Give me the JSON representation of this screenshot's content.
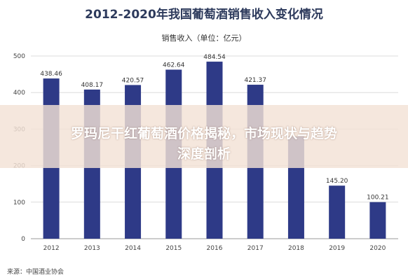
{
  "chart_data": {
    "type": "bar",
    "title": "2012-2020年我国葡萄酒销售收入变化情况",
    "subtitle": "销售收入（单位：亿元）",
    "source": "来源：中国酒业协会",
    "categories": [
      "2012",
      "2013",
      "2014",
      "2015",
      "2016",
      "2017",
      "2018",
      "2019",
      "2020"
    ],
    "values": [
      438.46,
      408.17,
      420.57,
      462.64,
      484.54,
      421.37,
      280,
      145.2,
      100.21
    ],
    "value_labels": [
      "438.46",
      "408.17",
      "420.57",
      "462.64",
      "484.54",
      "421.37",
      "",
      "145.20",
      "100.21"
    ],
    "ylim": [
      0,
      500
    ],
    "yticks": [
      0,
      100,
      200,
      300,
      400,
      500
    ],
    "grid": true,
    "bar_color": "#2e3a87"
  },
  "overlay": {
    "line1": "罗玛尼干红葡萄酒价格揭秘，市场现状与趋势",
    "line2": "深度剖析"
  }
}
